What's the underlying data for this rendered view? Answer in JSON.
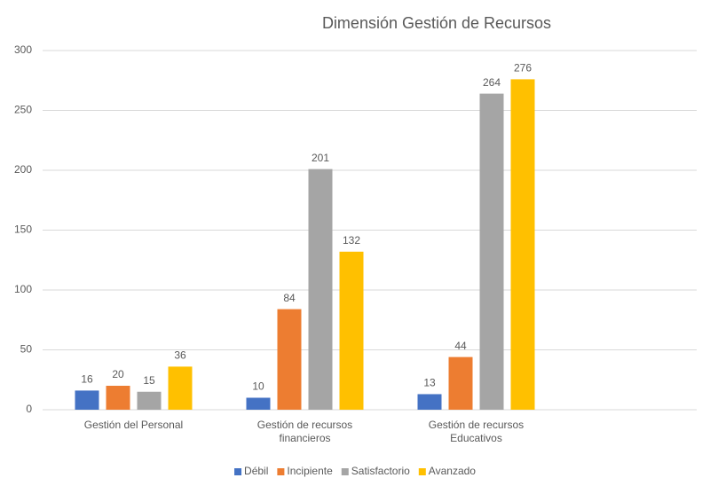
{
  "chart_data": {
    "type": "bar",
    "title": "Dimensión Gestión de Recursos",
    "categories": [
      "Gestión del Personal",
      "Gestión de recursos financieros",
      "Gestión de recursos Educativos"
    ],
    "series": [
      {
        "name": "Débil",
        "color": "#4472c4",
        "values": [
          16,
          10,
          13
        ]
      },
      {
        "name": "Incipiente",
        "color": "#ed7d31",
        "values": [
          20,
          84,
          44
        ]
      },
      {
        "name": "Satisfactorio",
        "color": "#a5a5a5",
        "values": [
          15,
          201,
          264
        ]
      },
      {
        "name": "Avanzado",
        "color": "#ffc000",
        "values": [
          36,
          132,
          276
        ]
      }
    ],
    "ylim": [
      0,
      300
    ],
    "yticks": [
      0,
      50,
      100,
      150,
      200,
      250,
      300
    ],
    "grid": true,
    "legend": "bottom"
  }
}
